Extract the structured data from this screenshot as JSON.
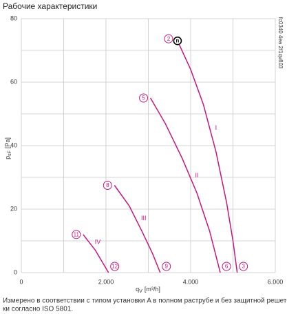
{
  "chart_data": {
    "type": "line",
    "title": "Рабочие характеристики",
    "x_label": {
      "main": "q",
      "sub": "V",
      "unit": "[m³/h]"
    },
    "y_label": {
      "main": "p",
      "sub": "sF",
      "unit": "[Pa]"
    },
    "side_note": "fc0340 4ea 2f1qv803",
    "xlim": [
      0,
      6000
    ],
    "ylim": [
      0,
      80
    ],
    "xticks": [
      0,
      {
        "value": 2000,
        "label": "2.000"
      },
      {
        "value": 4000,
        "label": "4.000"
      },
      {
        "value": 6000,
        "label": "6.000"
      }
    ],
    "yticks": [
      0,
      20,
      40,
      60,
      80
    ],
    "xminor": [
      1000,
      3000,
      5000
    ],
    "yminor": [
      10,
      30,
      50,
      70
    ],
    "grid": true,
    "color": "#c8157f",
    "series": [
      {
        "name": "I",
        "start_label": "2",
        "end_label": "3",
        "start_symbol": "n",
        "x": [
          3690,
          4000,
          4300,
          4600,
          4850,
          5000,
          5100
        ],
        "values": [
          73,
          64,
          53,
          38,
          22,
          10,
          0
        ]
      },
      {
        "name": "II",
        "start_label": "5",
        "end_label": "6",
        "x": [
          3050,
          3400,
          3800,
          4150,
          4450,
          4700
        ],
        "values": [
          55,
          47,
          36,
          25,
          13,
          0
        ]
      },
      {
        "name": "III",
        "start_label": "8",
        "end_label": "9",
        "x": [
          2200,
          2550,
          2850,
          3100,
          3280
        ],
        "values": [
          27.5,
          21,
          13,
          6,
          0
        ]
      },
      {
        "name": "IV",
        "start_label": "11",
        "end_label": "12",
        "x": [
          1460,
          1750,
          2060
        ],
        "values": [
          12,
          7,
          0
        ]
      }
    ]
  },
  "footnote": [
    "Измерено в соответствии с типом установки A в полном раструбе и без защитной решет-",
    "ки согласно ISO 5801."
  ]
}
